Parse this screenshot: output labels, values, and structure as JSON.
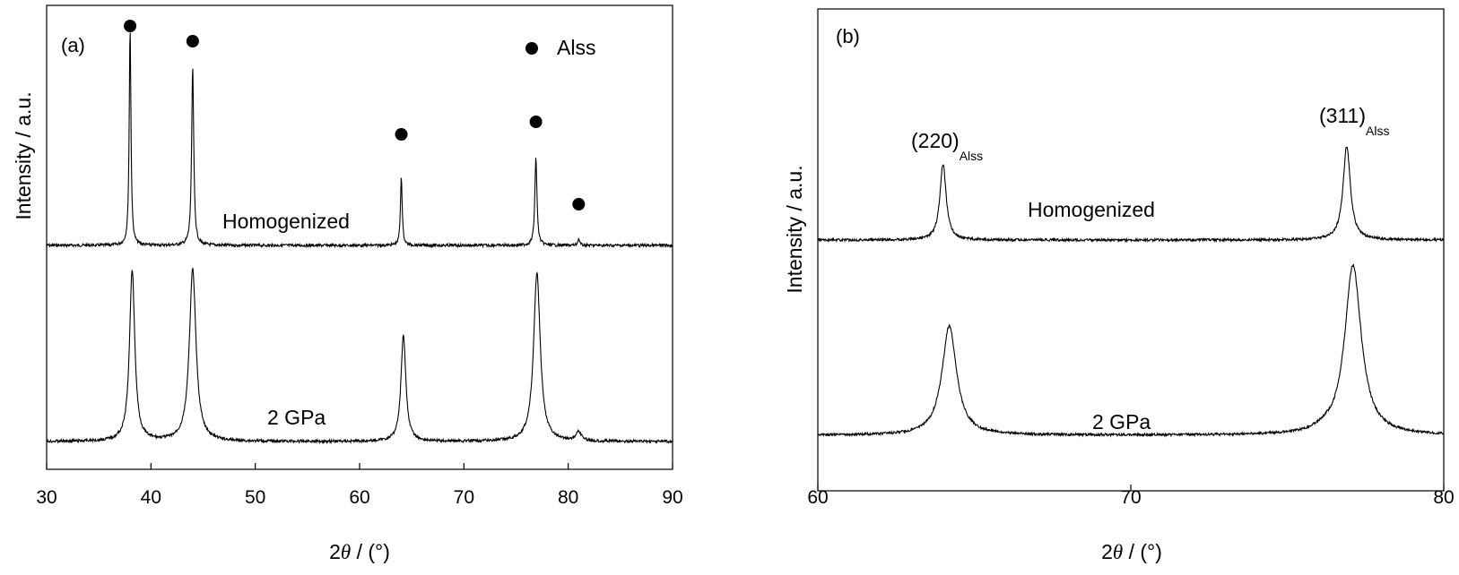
{
  "chart_data": [
    {
      "panel": "(a)",
      "type": "line",
      "xlabel_prefix": "2",
      "xlabel_theta": "θ",
      "xlabel_suffix": " / (°)",
      "ylabel": "Intensity / a.u.",
      "xlim": [
        30,
        90
      ],
      "xticks": [
        "30",
        "40",
        "50",
        "60",
        "70",
        "80",
        "90"
      ],
      "legend": {
        "marker": "filled-circle",
        "label": "Alss",
        "placement": "top-right"
      },
      "series": [
        {
          "name": "Homogenized",
          "baseline": 0.0,
          "peaks": [
            {
              "x": 38.0,
              "height": 1.9,
              "width": 0.1
            },
            {
              "x": 44.0,
              "height": 1.55,
              "width": 0.12
            },
            {
              "x": 64.0,
              "height": 0.6,
              "width": 0.1
            },
            {
              "x": 76.9,
              "height": 0.77,
              "width": 0.12
            },
            {
              "x": 81.0,
              "height": 0.06,
              "width": 0.1
            }
          ],
          "markers_x": [
            38.0,
            44.0,
            64.0,
            76.9,
            81.0
          ]
        },
        {
          "name": "2 GPa",
          "baseline": 0.0,
          "peaks": [
            {
              "x": 38.2,
              "height": 1.5,
              "width": 0.3
            },
            {
              "x": 44.0,
              "height": 1.5,
              "width": 0.38
            },
            {
              "x": 64.2,
              "height": 0.93,
              "width": 0.28
            },
            {
              "x": 77.0,
              "height": 1.47,
              "width": 0.38
            },
            {
              "x": 81.0,
              "height": 0.08,
              "width": 0.3
            }
          ]
        }
      ]
    },
    {
      "panel": "(b)",
      "type": "line",
      "xlabel_prefix": "2",
      "xlabel_theta": "θ",
      "xlabel_suffix": " / (°)",
      "ylabel": "Intensity / a.u.",
      "xlim": [
        60,
        80
      ],
      "xticks": [
        "60",
        "70",
        "80"
      ],
      "peak_labels": [
        {
          "main": "(220)",
          "sub": "Alss",
          "x": 64.0
        },
        {
          "main": "(311)",
          "sub": "Alss",
          "x": 76.9
        }
      ],
      "series": [
        {
          "name": "Homogenized",
          "peaks": [
            {
              "x": 64.0,
              "height": 0.85,
              "width": 0.12
            },
            {
              "x": 76.9,
              "height": 1.05,
              "width": 0.14
            }
          ]
        },
        {
          "name": "2 GPa",
          "peaks": [
            {
              "x": 64.2,
              "height": 1.22,
              "width": 0.28,
              "left_tail": 0.6
            },
            {
              "x": 77.1,
              "height": 1.9,
              "width": 0.32,
              "left_tail": 1.1
            }
          ]
        }
      ]
    }
  ]
}
